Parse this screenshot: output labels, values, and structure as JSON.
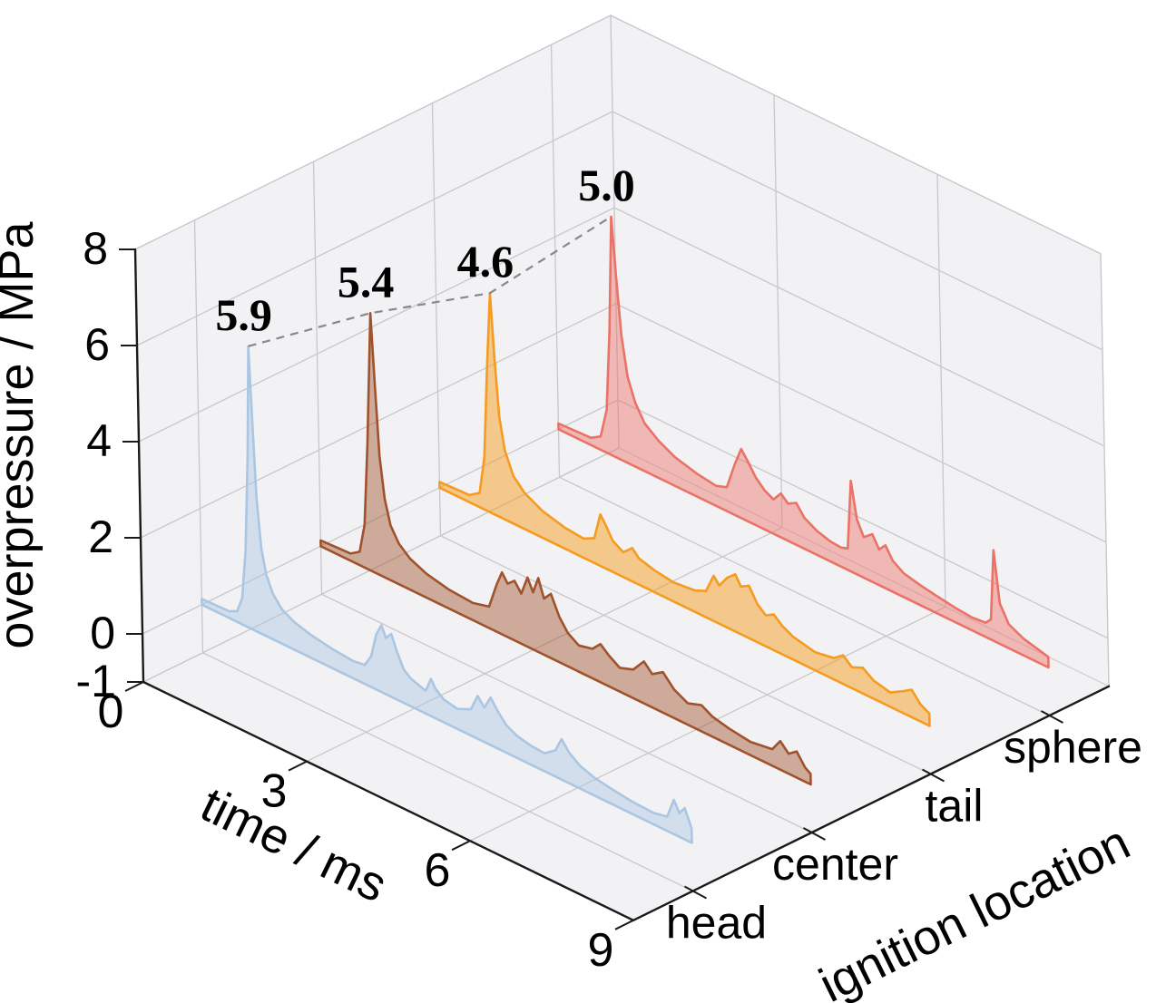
{
  "figure": {
    "aria_label": "3D filled line chart of overpressure versus time for four ignition locations",
    "background": "#ffffff"
  },
  "palette": {
    "pane": "#f2f2f4",
    "pane_edge": "#d2d2d6",
    "grid": "#c8c8cc",
    "axis": "#1a1a1a",
    "text": "#000000",
    "peak_line": "#888888"
  },
  "chart_data": {
    "type": "area",
    "projection": "3d",
    "title": "",
    "xlabel": "time / ms",
    "ylabel": "ignition location",
    "zlabel": "overpressure / MPa",
    "xlim": [
      0,
      9
    ],
    "x_ticks": [
      0,
      3,
      6,
      9
    ],
    "y_categories": [
      "head",
      "center",
      "tail",
      "sphere"
    ],
    "ylim": [
      -0.5,
      3.5
    ],
    "zlim": [
      -1,
      8
    ],
    "z_ticks": [
      8,
      6,
      4,
      2,
      0,
      -1
    ],
    "grid": true,
    "legend": "none",
    "peak_annotations": [
      {
        "location": "head",
        "x": 0.95,
        "value": 5.9,
        "label": "5.9"
      },
      {
        "location": "center",
        "x": 1.0,
        "value": 5.4,
        "label": "5.4"
      },
      {
        "location": "tail",
        "x": 1.0,
        "value": 4.6,
        "label": "4.6"
      },
      {
        "location": "sphere",
        "x": 1.05,
        "value": 5.0,
        "label": "5.0"
      }
    ],
    "series": [
      {
        "name": "head",
        "edge_color": "#aac6e2",
        "fill_color": "#aac6e2",
        "fill_opacity": 0.45,
        "baseline": 0,
        "points": [
          [
            0,
            0.12
          ],
          [
            0.5,
            0.14
          ],
          [
            0.65,
            0.22
          ],
          [
            0.75,
            0.55
          ],
          [
            0.83,
            1.6
          ],
          [
            0.9,
            3.6
          ],
          [
            0.95,
            5.9
          ],
          [
            1.0,
            4.3
          ],
          [
            1.05,
            2.8
          ],
          [
            1.12,
            1.8
          ],
          [
            1.2,
            1.3
          ],
          [
            1.32,
            0.95
          ],
          [
            1.48,
            0.72
          ],
          [
            1.7,
            0.58
          ],
          [
            2.0,
            0.48
          ],
          [
            2.4,
            0.4
          ],
          [
            2.78,
            0.36
          ],
          [
            3.0,
            0.4
          ],
          [
            3.12,
            0.65
          ],
          [
            3.22,
            1.15
          ],
          [
            3.32,
            1.4
          ],
          [
            3.4,
            1.18
          ],
          [
            3.5,
            1.32
          ],
          [
            3.6,
            1.0
          ],
          [
            3.72,
            0.7
          ],
          [
            3.85,
            0.58
          ],
          [
            4.0,
            0.52
          ],
          [
            4.12,
            0.48
          ],
          [
            4.22,
            0.78
          ],
          [
            4.3,
            0.62
          ],
          [
            4.45,
            0.48
          ],
          [
            4.7,
            0.42
          ],
          [
            4.95,
            0.55
          ],
          [
            5.08,
            0.9
          ],
          [
            5.2,
            0.72
          ],
          [
            5.32,
            1.0
          ],
          [
            5.45,
            0.78
          ],
          [
            5.6,
            0.58
          ],
          [
            5.8,
            0.46
          ],
          [
            6.05,
            0.4
          ],
          [
            6.3,
            0.38
          ],
          [
            6.5,
            0.55
          ],
          [
            6.62,
            0.85
          ],
          [
            6.75,
            0.65
          ],
          [
            6.95,
            0.48
          ],
          [
            7.2,
            0.38
          ],
          [
            7.5,
            0.32
          ],
          [
            7.9,
            0.26
          ],
          [
            8.3,
            0.24
          ],
          [
            8.55,
            0.3
          ],
          [
            8.68,
            0.72
          ],
          [
            8.78,
            0.5
          ],
          [
            8.88,
            0.66
          ],
          [
            9,
            0.3
          ]
        ]
      },
      {
        "name": "center",
        "edge_color": "#a0522d",
        "fill_color": "#a0522d",
        "fill_opacity": 0.45,
        "baseline": 0,
        "points": [
          [
            0,
            0.12
          ],
          [
            0.55,
            0.15
          ],
          [
            0.72,
            0.28
          ],
          [
            0.82,
            0.9
          ],
          [
            0.9,
            2.6
          ],
          [
            1.0,
            5.4
          ],
          [
            1.06,
            3.9
          ],
          [
            1.12,
            2.5
          ],
          [
            1.2,
            1.65
          ],
          [
            1.3,
            1.15
          ],
          [
            1.45,
            0.85
          ],
          [
            1.65,
            0.65
          ],
          [
            1.95,
            0.5
          ],
          [
            2.35,
            0.4
          ],
          [
            2.8,
            0.36
          ],
          [
            3.1,
            0.45
          ],
          [
            3.25,
            1.0
          ],
          [
            3.35,
            1.3
          ],
          [
            3.45,
            1.12
          ],
          [
            3.58,
            1.25
          ],
          [
            3.7,
            1.05
          ],
          [
            3.82,
            1.45
          ],
          [
            3.92,
            1.2
          ],
          [
            4.02,
            1.55
          ],
          [
            4.12,
            1.18
          ],
          [
            4.25,
            1.35
          ],
          [
            4.4,
            0.95
          ],
          [
            4.55,
            0.7
          ],
          [
            4.75,
            0.55
          ],
          [
            5.0,
            0.62
          ],
          [
            5.15,
            0.8
          ],
          [
            5.3,
            0.65
          ],
          [
            5.5,
            0.5
          ],
          [
            5.75,
            0.6
          ],
          [
            5.95,
            0.88
          ],
          [
            6.1,
            0.7
          ],
          [
            6.3,
            0.85
          ],
          [
            6.5,
            0.6
          ],
          [
            6.75,
            0.45
          ],
          [
            7.0,
            0.55
          ],
          [
            7.2,
            0.42
          ],
          [
            7.5,
            0.34
          ],
          [
            7.9,
            0.28
          ],
          [
            8.3,
            0.35
          ],
          [
            8.45,
            0.6
          ],
          [
            8.6,
            0.42
          ],
          [
            8.75,
            0.55
          ],
          [
            8.9,
            0.3
          ],
          [
            9,
            0.22
          ]
        ]
      },
      {
        "name": "tail",
        "edge_color": "#f59b20",
        "fill_color": "#f59b20",
        "fill_opacity": 0.5,
        "baseline": 0,
        "points": [
          [
            0,
            0.12
          ],
          [
            0.55,
            0.15
          ],
          [
            0.74,
            0.3
          ],
          [
            0.84,
            1.1
          ],
          [
            0.92,
            3.0
          ],
          [
            1.0,
            4.6
          ],
          [
            1.06,
            3.3
          ],
          [
            1.13,
            2.1
          ],
          [
            1.22,
            1.45
          ],
          [
            1.37,
            1.0
          ],
          [
            1.58,
            0.75
          ],
          [
            1.9,
            0.56
          ],
          [
            2.3,
            0.44
          ],
          [
            2.65,
            0.4
          ],
          [
            2.85,
            0.52
          ],
          [
            2.97,
            1.08
          ],
          [
            3.07,
            0.9
          ],
          [
            3.19,
            0.65
          ],
          [
            3.38,
            0.52
          ],
          [
            3.55,
            0.7
          ],
          [
            3.67,
            0.55
          ],
          [
            3.95,
            0.46
          ],
          [
            4.3,
            0.4
          ],
          [
            4.7,
            0.45
          ],
          [
            4.9,
            0.55
          ],
          [
            5.05,
            0.95
          ],
          [
            5.15,
            0.8
          ],
          [
            5.3,
            1.05
          ],
          [
            5.45,
            1.2
          ],
          [
            5.55,
            1.0
          ],
          [
            5.7,
            1.1
          ],
          [
            5.85,
            0.8
          ],
          [
            6.0,
            0.65
          ],
          [
            6.15,
            0.75
          ],
          [
            6.3,
            0.6
          ],
          [
            6.5,
            0.48
          ],
          [
            6.9,
            0.38
          ],
          [
            7.25,
            0.45
          ],
          [
            7.42,
            0.6
          ],
          [
            7.58,
            0.44
          ],
          [
            7.78,
            0.54
          ],
          [
            7.98,
            0.38
          ],
          [
            8.28,
            0.3
          ],
          [
            8.52,
            0.46
          ],
          [
            8.68,
            0.58
          ],
          [
            8.84,
            0.36
          ],
          [
            9,
            0.26
          ]
        ]
      },
      {
        "name": "sphere",
        "edge_color": "#ea7267",
        "fill_color": "#ea7267",
        "fill_opacity": 0.45,
        "baseline": 0,
        "points": [
          [
            0,
            0.12
          ],
          [
            0.6,
            0.15
          ],
          [
            0.78,
            0.28
          ],
          [
            0.9,
            0.9
          ],
          [
            0.98,
            2.6
          ],
          [
            1.05,
            5.0
          ],
          [
            1.12,
            3.8
          ],
          [
            1.2,
            2.6
          ],
          [
            1.3,
            1.8
          ],
          [
            1.43,
            1.35
          ],
          [
            1.6,
            1.0
          ],
          [
            1.85,
            0.78
          ],
          [
            2.15,
            0.6
          ],
          [
            2.55,
            0.48
          ],
          [
            2.9,
            0.42
          ],
          [
            3.1,
            0.5
          ],
          [
            3.25,
            1.05
          ],
          [
            3.38,
            1.45
          ],
          [
            3.5,
            1.25
          ],
          [
            3.64,
            1.0
          ],
          [
            3.8,
            0.82
          ],
          [
            3.96,
            0.72
          ],
          [
            4.1,
            0.92
          ],
          [
            4.23,
            0.78
          ],
          [
            4.38,
            0.88
          ],
          [
            4.53,
            0.65
          ],
          [
            4.76,
            0.5
          ],
          [
            5.0,
            0.42
          ],
          [
            5.2,
            0.4
          ],
          [
            5.32,
            0.45
          ],
          [
            5.4,
            1.9
          ],
          [
            5.5,
            1.15
          ],
          [
            5.62,
            0.85
          ],
          [
            5.78,
            1.0
          ],
          [
            5.9,
            0.75
          ],
          [
            6.02,
            0.9
          ],
          [
            6.15,
            0.65
          ],
          [
            6.35,
            0.5
          ],
          [
            6.65,
            0.42
          ],
          [
            6.95,
            0.36
          ],
          [
            7.3,
            0.3
          ],
          [
            7.6,
            0.27
          ],
          [
            7.85,
            0.3
          ],
          [
            7.95,
            0.42
          ],
          [
            8.02,
            1.9
          ],
          [
            8.12,
            0.85
          ],
          [
            8.28,
            0.5
          ],
          [
            8.55,
            0.35
          ],
          [
            8.8,
            0.28
          ],
          [
            9,
            0.22
          ]
        ]
      }
    ]
  }
}
